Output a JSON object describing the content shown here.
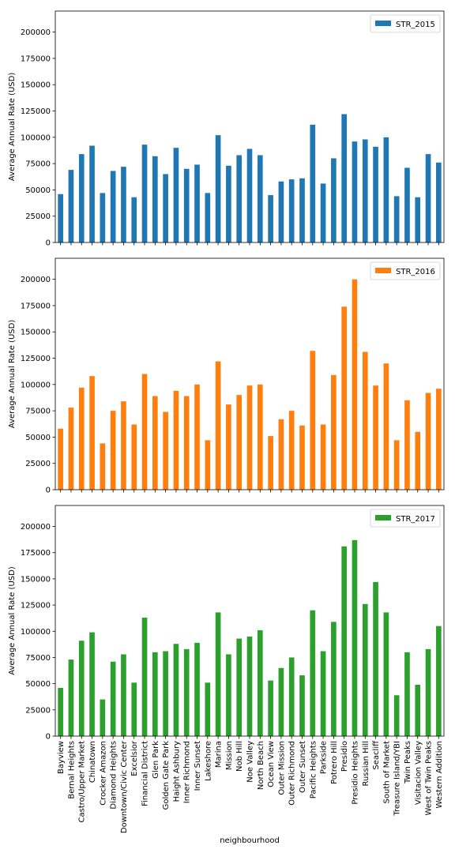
{
  "figure": {
    "shared_xlabel": "neighbourhood",
    "ylabel": "Average Annual Rate (USD)"
  },
  "chart_data": [
    {
      "type": "bar",
      "title": "",
      "xlabel": "",
      "ylabel": "Average Annual Rate (USD)",
      "ylim": [
        0,
        220000
      ],
      "yticks": [
        0,
        25000,
        50000,
        75000,
        100000,
        125000,
        150000,
        175000,
        200000
      ],
      "ytick_labels": [
        "0",
        "25000",
        "50000",
        "75000",
        "100000",
        "125000",
        "150000",
        "175000",
        "200000"
      ],
      "grid": false,
      "legend_position": "top-right",
      "categories": [
        "Bayview",
        "Bernal Heights",
        "Castro/Upper Market",
        "Chinatown",
        "Crocker Amazon",
        "Diamond Heights",
        "Downtown/Civic Center",
        "Excelsior",
        "Financial District",
        "Glen Park",
        "Golden Gate Park",
        "Haight Ashbury",
        "Inner Richmond",
        "Inner Sunset",
        "Lakeshore",
        "Marina",
        "Mission",
        "Nob Hill",
        "Noe Valley",
        "North Beach",
        "Ocean View",
        "Outer Mission",
        "Outer Richmond",
        "Outer Sunset",
        "Pacific Heights",
        "Parkside",
        "Potrero Hill",
        "Presidio",
        "Presidio Heights",
        "Russian Hill",
        "Seacliff",
        "South of Market",
        "Treasure Island/YBI",
        "Twin Peaks",
        "Visitacion Valley",
        "West of Twin Peaks",
        "Western Addition"
      ],
      "series": [
        {
          "name": "STR_2015",
          "color": "#1f77b4",
          "values": [
            46000,
            69000,
            84000,
            92000,
            47000,
            68000,
            72000,
            43000,
            93000,
            82000,
            65000,
            90000,
            70000,
            74000,
            47000,
            102000,
            73000,
            83000,
            89000,
            83000,
            45000,
            58000,
            60000,
            61000,
            112000,
            56000,
            80000,
            122000,
            96000,
            98000,
            91000,
            100000,
            44000,
            71000,
            43000,
            84000,
            76000
          ]
        }
      ]
    },
    {
      "type": "bar",
      "title": "",
      "xlabel": "",
      "ylabel": "Average Annual Rate (USD)",
      "ylim": [
        0,
        220000
      ],
      "yticks": [
        0,
        25000,
        50000,
        75000,
        100000,
        125000,
        150000,
        175000,
        200000
      ],
      "ytick_labels": [
        "0",
        "25000",
        "50000",
        "75000",
        "100000",
        "125000",
        "150000",
        "175000",
        "200000"
      ],
      "grid": false,
      "legend_position": "top-right",
      "categories": [
        "Bayview",
        "Bernal Heights",
        "Castro/Upper Market",
        "Chinatown",
        "Crocker Amazon",
        "Diamond Heights",
        "Downtown/Civic Center",
        "Excelsior",
        "Financial District",
        "Glen Park",
        "Golden Gate Park",
        "Haight Ashbury",
        "Inner Richmond",
        "Inner Sunset",
        "Lakeshore",
        "Marina",
        "Mission",
        "Nob Hill",
        "Noe Valley",
        "North Beach",
        "Ocean View",
        "Outer Mission",
        "Outer Richmond",
        "Outer Sunset",
        "Pacific Heights",
        "Parkside",
        "Potrero Hill",
        "Presidio",
        "Presidio Heights",
        "Russian Hill",
        "Seacliff",
        "South of Market",
        "Treasure Island/YBI",
        "Twin Peaks",
        "Visitacion Valley",
        "West of Twin Peaks",
        "Western Addition"
      ],
      "series": [
        {
          "name": "STR_2016",
          "color": "#ff7f0e",
          "values": [
            58000,
            78000,
            97000,
            108000,
            44000,
            75000,
            84000,
            62000,
            110000,
            89000,
            74000,
            94000,
            89000,
            100000,
            47000,
            122000,
            81000,
            90000,
            99000,
            100000,
            51000,
            67000,
            75000,
            61000,
            132000,
            62000,
            109000,
            174000,
            200000,
            131000,
            99000,
            120000,
            47000,
            85000,
            55000,
            92000,
            96000
          ]
        }
      ]
    },
    {
      "type": "bar",
      "title": "",
      "xlabel": "neighbourhood",
      "ylabel": "Average Annual Rate (USD)",
      "ylim": [
        0,
        220000
      ],
      "yticks": [
        0,
        25000,
        50000,
        75000,
        100000,
        125000,
        150000,
        175000,
        200000
      ],
      "ytick_labels": [
        "0",
        "25000",
        "50000",
        "75000",
        "100000",
        "125000",
        "150000",
        "175000",
        "200000"
      ],
      "grid": false,
      "legend_position": "top-right",
      "categories": [
        "Bayview",
        "Bernal Heights",
        "Castro/Upper Market",
        "Chinatown",
        "Crocker Amazon",
        "Diamond Heights",
        "Downtown/Civic Center",
        "Excelsior",
        "Financial District",
        "Glen Park",
        "Golden Gate Park",
        "Haight Ashbury",
        "Inner Richmond",
        "Inner Sunset",
        "Lakeshore",
        "Marina",
        "Mission",
        "Nob Hill",
        "Noe Valley",
        "North Beach",
        "Ocean View",
        "Outer Mission",
        "Outer Richmond",
        "Outer Sunset",
        "Pacific Heights",
        "Parkside",
        "Potrero Hill",
        "Presidio",
        "Presidio Heights",
        "Russian Hill",
        "Seacliff",
        "South of Market",
        "Treasure Island/YBI",
        "Twin Peaks",
        "Visitacion Valley",
        "West of Twin Peaks",
        "Western Addition"
      ],
      "series": [
        {
          "name": "STR_2017",
          "color": "#2ca02c",
          "values": [
            46000,
            73000,
            91000,
            99000,
            35000,
            71000,
            78000,
            51000,
            113000,
            80000,
            81000,
            88000,
            83000,
            89000,
            51000,
            118000,
            78000,
            93000,
            95000,
            101000,
            53000,
            65000,
            75000,
            58000,
            120000,
            81000,
            109000,
            181000,
            187000,
            126000,
            147000,
            118000,
            39000,
            80000,
            49000,
            83000,
            105000
          ]
        }
      ]
    }
  ]
}
